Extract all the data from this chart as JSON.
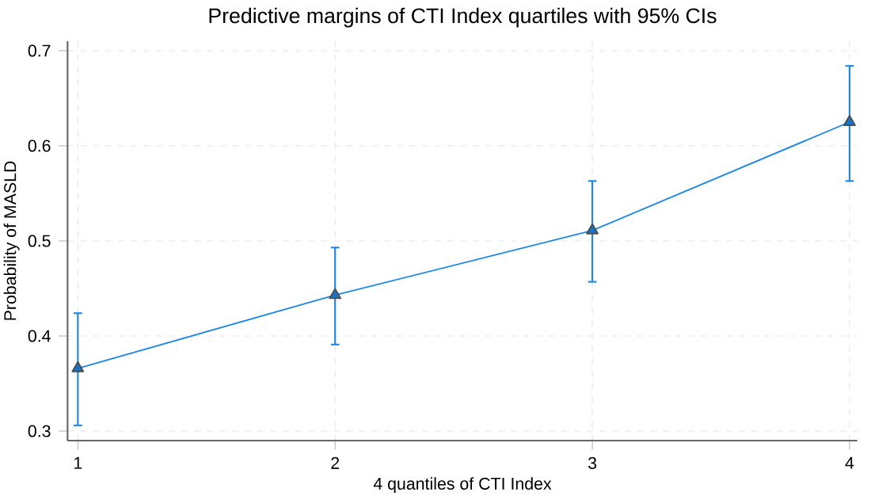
{
  "chart_data": {
    "type": "line",
    "title": "Predictive margins of CTI Index quartiles with 95% CIs",
    "xlabel": "4 quantiles of CTI Index",
    "ylabel": "Probability of MASLD",
    "x": [
      1,
      2,
      3,
      4
    ],
    "xlim": [
      0.96,
      4.03
    ],
    "xticks": [
      1,
      2,
      3,
      4
    ],
    "ylim": [
      0.29,
      0.71
    ],
    "yticks": [
      0.3,
      0.4,
      0.5,
      0.6,
      0.7
    ],
    "series": [
      {
        "color": "#1e88e5",
        "values": [
          0.366,
          0.443,
          0.511,
          0.625
        ],
        "errors": [
          [
            0.306,
            0.424
          ],
          [
            0.391,
            0.493
          ],
          [
            0.457,
            0.563
          ],
          [
            0.563,
            0.684
          ]
        ]
      }
    ],
    "grid": true,
    "marker": "triangle",
    "line_style": "solid"
  }
}
